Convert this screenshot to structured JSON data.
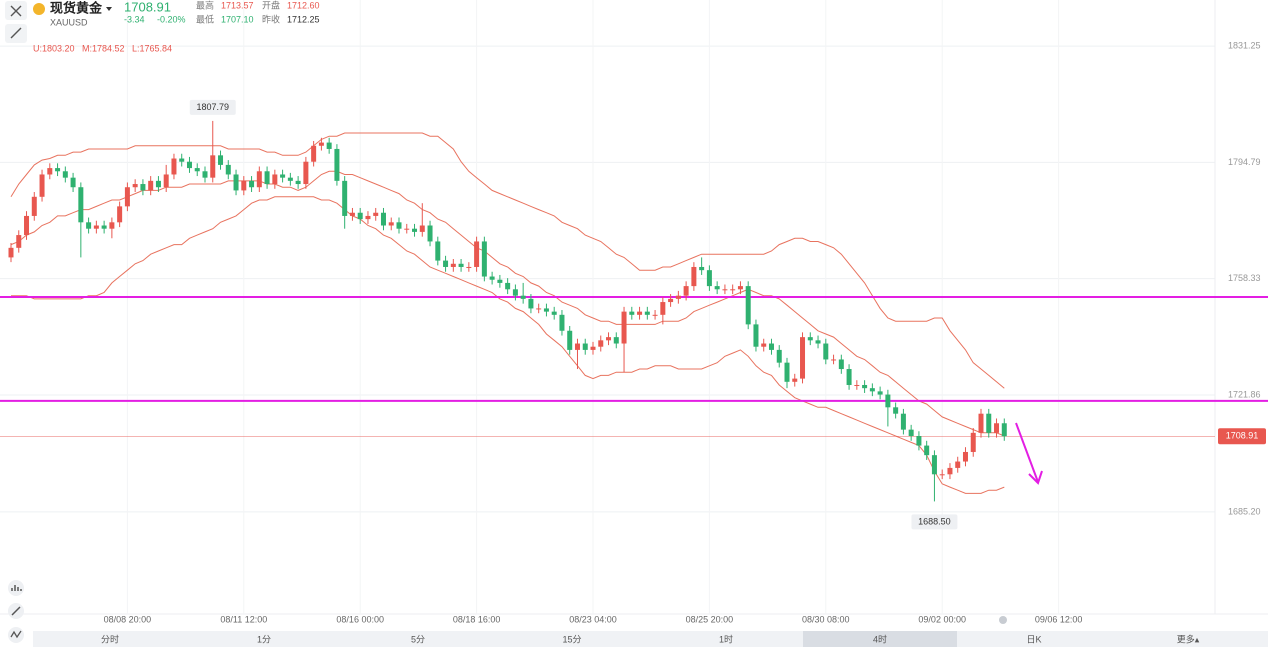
{
  "header": {
    "name": "现货黄金",
    "symbol": "XAUUSD",
    "price": "1708.91",
    "change": "-3.34",
    "change_pct": "-0.20%",
    "stats": [
      {
        "label": "最高",
        "value": "1713.57"
      },
      {
        "label": "开盘",
        "value": "1712.60"
      },
      {
        "label": "最低",
        "value": "1707.10"
      },
      {
        "label": "昨收",
        "value": "1712.25"
      }
    ],
    "indicator": [
      "U:1803.20",
      "M:1784.52",
      "L:1765.84"
    ]
  },
  "tabs": [
    "分时",
    "1分",
    "5分",
    "15分",
    "1时",
    "4时",
    "日K",
    "更多▴"
  ],
  "selected_tab": "4时",
  "chart_data": {
    "type": "candlestick",
    "ylim": [
      1653.2,
      1845.7
    ],
    "yticks": [
      {
        "value": 1831.25,
        "label": "1831.25"
      },
      1794.79,
      1758.33,
      1721.86,
      {
        "value": 1685.2,
        "label": "1685.20"
      }
    ],
    "grid": true,
    "up_color": "#e8574f",
    "down_color": "#2fb170",
    "last_price": 1708.91,
    "last_price_color": "#e8574f",
    "hlines": [
      {
        "value": 1752.6,
        "color": "#e31ee3"
      },
      {
        "value": 1720,
        "color": "#e31ee3"
      }
    ],
    "high_label": "1807.79",
    "low_label": "1688.50",
    "categories": [
      null,
      null,
      null,
      null,
      null,
      null,
      null,
      null,
      null,
      null,
      null,
      null,
      null,
      null,
      null,
      "08/08 20:00",
      null,
      null,
      null,
      null,
      null,
      null,
      null,
      null,
      null,
      null,
      null,
      null,
      null,
      null,
      "08/11 12:00",
      null,
      null,
      null,
      null,
      null,
      null,
      null,
      null,
      null,
      null,
      null,
      null,
      null,
      null,
      "08/16 00:00",
      null,
      null,
      null,
      null,
      null,
      null,
      null,
      null,
      null,
      null,
      null,
      null,
      null,
      null,
      "08/18 16:00",
      null,
      null,
      null,
      null,
      null,
      null,
      null,
      null,
      null,
      null,
      null,
      null,
      null,
      null,
      "08/23 04:00",
      null,
      null,
      null,
      null,
      null,
      null,
      null,
      null,
      null,
      null,
      null,
      null,
      null,
      null,
      "08/25 20:00",
      null,
      null,
      null,
      null,
      null,
      null,
      null,
      null,
      null,
      null,
      null,
      null,
      null,
      null,
      "08/30 08:00",
      null,
      null,
      null,
      null,
      null,
      null,
      null,
      null,
      null,
      null,
      null,
      null,
      null,
      null,
      "09/02 00:00",
      null,
      null,
      null,
      null,
      null,
      null,
      null,
      null,
      null,
      null,
      null,
      null,
      null,
      null,
      "09/06 12:00"
    ],
    "candles": [
      [
        1765,
        1769.5,
        1763.5,
        1768
      ],
      [
        1768,
        1773.5,
        1766.5,
        1772
      ],
      [
        1772,
        1779.5,
        1770.5,
        1778
      ],
      [
        1778,
        1785.5,
        1776.5,
        1784
      ],
      [
        1784,
        1792.5,
        1782.5,
        1791
      ],
      [
        1791,
        1794.5,
        1789.5,
        1793
      ],
      [
        1793,
        1794.5,
        1790.5,
        1792
      ],
      [
        1792,
        1793.5,
        1788.5,
        1790
      ],
      [
        1790,
        1791.5,
        1785.5,
        1787
      ],
      [
        1787,
        1788.5,
        1765,
        1776
      ],
      [
        1776,
        1777.5,
        1772.5,
        1774
      ],
      [
        1774,
        1776.5,
        1772.5,
        1775
      ],
      [
        1775,
        1776.5,
        1772.5,
        1774
      ],
      [
        1774,
        1777.5,
        1771,
        1776
      ],
      [
        1776,
        1782.5,
        1774.5,
        1781
      ],
      [
        1781,
        1788.5,
        1779.5,
        1787
      ],
      [
        1787,
        1789.5,
        1785.5,
        1788
      ],
      [
        1788,
        1789.5,
        1784.5,
        1786
      ],
      [
        1786,
        1790.5,
        1784.5,
        1789
      ],
      [
        1789,
        1790.5,
        1785.5,
        1787
      ],
      [
        1787,
        1794,
        1785.5,
        1791
      ],
      [
        1791,
        1797.5,
        1789.5,
        1796
      ],
      [
        1796,
        1797.5,
        1793.5,
        1795
      ],
      [
        1795,
        1796.5,
        1791.5,
        1793
      ],
      [
        1793,
        1794.5,
        1790.5,
        1792
      ],
      [
        1792,
        1793.5,
        1788.5,
        1790
      ],
      [
        1790,
        1807.79,
        1788.5,
        1797
      ],
      [
        1797,
        1798.5,
        1792.5,
        1794
      ],
      [
        1794,
        1795.5,
        1789.5,
        1791
      ],
      [
        1791,
        1792.5,
        1784.5,
        1786
      ],
      [
        1786,
        1790.5,
        1784.5,
        1789
      ],
      [
        1789,
        1790.5,
        1785.5,
        1787
      ],
      [
        1787,
        1793.5,
        1785.5,
        1792
      ],
      [
        1792,
        1793.5,
        1786.5,
        1788
      ],
      [
        1788,
        1792.5,
        1786.5,
        1791
      ],
      [
        1791,
        1792.5,
        1788.5,
        1790
      ],
      [
        1790,
        1791.5,
        1787.5,
        1789
      ],
      [
        1789,
        1790.5,
        1786.5,
        1788
      ],
      [
        1788,
        1796.5,
        1786.5,
        1795
      ],
      [
        1795,
        1801.5,
        1793.5,
        1800
      ],
      [
        1800,
        1802.5,
        1798.5,
        1801
      ],
      [
        1801,
        1802.5,
        1797.5,
        1799
      ],
      [
        1799,
        1800.5,
        1787.5,
        1789
      ],
      [
        1789,
        1790.5,
        1774,
        1778
      ],
      [
        1778,
        1780.5,
        1776.5,
        1779
      ],
      [
        1779,
        1780.5,
        1775.5,
        1777
      ],
      [
        1777,
        1779.5,
        1775.5,
        1778
      ],
      [
        1778,
        1780.5,
        1776.5,
        1779
      ],
      [
        1779,
        1780.5,
        1773.5,
        1775
      ],
      [
        1775,
        1777.5,
        1773.5,
        1776
      ],
      [
        1776,
        1777.5,
        1772.5,
        1774
      ],
      [
        1774,
        1775.5,
        1772.5,
        1774
      ],
      [
        1774,
        1775.5,
        1771.5,
        1773
      ],
      [
        1773,
        1782,
        1771.5,
        1775
      ],
      [
        1775,
        1776.5,
        1768.5,
        1770
      ],
      [
        1770,
        1771.5,
        1762.5,
        1764
      ],
      [
        1764,
        1765.5,
        1760.5,
        1762
      ],
      [
        1762,
        1764.5,
        1760.5,
        1763
      ],
      [
        1763,
        1764.5,
        1760.5,
        1762
      ],
      [
        1762,
        1763.5,
        1760.5,
        1762
      ],
      [
        1762,
        1771.5,
        1760.5,
        1770
      ],
      [
        1770,
        1771.5,
        1757.5,
        1759
      ],
      [
        1759,
        1760.5,
        1756.5,
        1758
      ],
      [
        1758,
        1759.5,
        1755.5,
        1757
      ],
      [
        1757,
        1758.5,
        1753.5,
        1755
      ],
      [
        1755,
        1756.5,
        1751.5,
        1753
      ],
      [
        1753,
        1757,
        1750.5,
        1752
      ],
      [
        1752,
        1753.5,
        1747.5,
        1749
      ],
      [
        1749,
        1750.5,
        1747.5,
        1749
      ],
      [
        1749,
        1750.5,
        1746.5,
        1748
      ],
      [
        1748,
        1749.5,
        1745.5,
        1747
      ],
      [
        1747,
        1748.5,
        1740.5,
        1742
      ],
      [
        1742,
        1743.5,
        1734.5,
        1736
      ],
      [
        1736,
        1739.5,
        1730,
        1738
      ],
      [
        1738,
        1739.5,
        1734.5,
        1736
      ],
      [
        1736,
        1738.5,
        1734.5,
        1737
      ],
      [
        1737,
        1740.5,
        1735.5,
        1739
      ],
      [
        1739,
        1741.5,
        1737.5,
        1740
      ],
      [
        1740,
        1741.5,
        1736.5,
        1738
      ],
      [
        1738,
        1749.5,
        1729,
        1748
      ],
      [
        1748,
        1749.5,
        1745.5,
        1747
      ],
      [
        1747,
        1749.5,
        1745.5,
        1748
      ],
      [
        1748,
        1749.5,
        1745.5,
        1747
      ],
      [
        1747,
        1748.5,
        1745.5,
        1747
      ],
      [
        1747,
        1752.5,
        1744,
        1751
      ],
      [
        1751,
        1753.5,
        1749.5,
        1752
      ],
      [
        1752,
        1754.5,
        1750.5,
        1753
      ],
      [
        1753,
        1757.5,
        1751.5,
        1756
      ],
      [
        1756,
        1763.5,
        1754.5,
        1762
      ],
      [
        1762,
        1765,
        1759.5,
        1761
      ],
      [
        1761,
        1762.5,
        1754.5,
        1756
      ],
      [
        1756,
        1757.5,
        1753.5,
        1755
      ],
      [
        1755,
        1756.5,
        1753.5,
        1755
      ],
      [
        1755,
        1756.5,
        1753.5,
        1755
      ],
      [
        1755,
        1757.5,
        1753.5,
        1756
      ],
      [
        1756,
        1757.5,
        1742.5,
        1744
      ],
      [
        1744,
        1745.5,
        1735.5,
        1737
      ],
      [
        1737,
        1739.5,
        1735.5,
        1738
      ],
      [
        1738,
        1739.5,
        1734.5,
        1736
      ],
      [
        1736,
        1737.5,
        1730.5,
        1732
      ],
      [
        1732,
        1733.5,
        1724,
        1726
      ],
      [
        1726,
        1728.5,
        1724.5,
        1727
      ],
      [
        1727,
        1741.5,
        1725.5,
        1740
      ],
      [
        1740,
        1741.5,
        1737.5,
        1739
      ],
      [
        1739,
        1740.5,
        1736.5,
        1738
      ],
      [
        1738,
        1739.5,
        1731.5,
        1733
      ],
      [
        1733,
        1734.5,
        1731.5,
        1733
      ],
      [
        1733,
        1734.5,
        1728.5,
        1730
      ],
      [
        1730,
        1731.5,
        1723.5,
        1725
      ],
      [
        1725,
        1726.5,
        1723.5,
        1725
      ],
      [
        1725,
        1726.5,
        1722.5,
        1724
      ],
      [
        1724,
        1725.5,
        1721.5,
        1723
      ],
      [
        1723,
        1724.5,
        1720.5,
        1722
      ],
      [
        1722,
        1723.5,
        1712,
        1718
      ],
      [
        1718,
        1719.5,
        1714.5,
        1716
      ],
      [
        1716,
        1717.5,
        1709.5,
        1711
      ],
      [
        1711,
        1712.5,
        1707.5,
        1709
      ],
      [
        1709,
        1710.5,
        1704.5,
        1706
      ],
      [
        1706,
        1707.5,
        1701.5,
        1703
      ],
      [
        1703,
        1704.5,
        1688.5,
        1697
      ],
      [
        1697,
        1698.5,
        1695.5,
        1697
      ],
      [
        1697,
        1700.5,
        1695.5,
        1699
      ],
      [
        1699,
        1702.5,
        1697.5,
        1701
      ],
      [
        1701,
        1705.5,
        1699.5,
        1704
      ],
      [
        1704,
        1711.5,
        1702.5,
        1710
      ],
      [
        1710,
        1717.5,
        1708.5,
        1716
      ],
      [
        1716,
        1717.5,
        1708.5,
        1710
      ],
      [
        1710,
        1714.5,
        1708.5,
        1713
      ],
      [
        1713,
        1714.5,
        1707.5,
        1708.91
      ],
      null,
      null,
      null,
      null,
      null,
      null,
      null
    ],
    "bands": [
      {
        "color": "#e8735f",
        "values": [
          1784,
          1788,
          1791,
          1794,
          1795.5,
          1796,
          1797,
          1797,
          1798,
          1798,
          1799,
          1799,
          1799,
          1799,
          1799,
          1799,
          1800,
          1800,
          1800,
          1800,
          1800,
          1800,
          1800,
          1800,
          1800,
          1800,
          1800,
          1800,
          1799,
          1799,
          1799,
          1799,
          1799,
          1798,
          1798,
          1797,
          1797,
          1797,
          1798,
          1800,
          1802,
          1803,
          1803,
          1804,
          1804,
          1804,
          1804,
          1804,
          1804,
          1804,
          1804,
          1804,
          1804,
          1804,
          1803,
          1803,
          1801,
          1799,
          1795,
          1792,
          1790,
          1788,
          1786,
          1785,
          1784,
          1783,
          1782,
          1781,
          1780,
          1779,
          1778,
          1776,
          1775,
          1774,
          1772,
          1771,
          1770,
          1768,
          1766,
          1765,
          1763,
          1761,
          1761,
          1761,
          1762,
          1762,
          1763,
          1764,
          1765,
          1766,
          1766,
          1766,
          1766,
          1766,
          1766,
          1766,
          1766,
          1766,
          1767,
          1769,
          1770,
          1771,
          1771,
          1770,
          1770,
          1769,
          1768,
          1766,
          1763,
          1760,
          1757,
          1753,
          1749,
          1746,
          1745,
          1745,
          1745,
          1745,
          1745,
          1746,
          1746,
          1742,
          1739,
          1736,
          1732,
          1730,
          1728,
          1726,
          1724,
          null,
          null,
          null,
          null,
          null,
          null,
          null
        ]
      },
      {
        "color": "#e8735f",
        "values": [
          1769,
          1770,
          1772,
          1773,
          1775,
          1776,
          1778,
          1778,
          1779,
          1780,
          1780,
          1781,
          1782,
          1783,
          1783,
          1784,
          1785,
          1786,
          1786,
          1786,
          1787,
          1787,
          1787,
          1788,
          1788,
          1788,
          1788,
          1788,
          1789,
          1789,
          1789,
          1789,
          1789,
          1788,
          1788,
          1787,
          1787,
          1786,
          1787,
          1789,
          1791,
          1792,
          1792,
          1791,
          1791,
          1790,
          1789,
          1788,
          1787,
          1786,
          1785,
          1783,
          1782,
          1780,
          1779,
          1777,
          1776,
          1774,
          1772,
          1770,
          1768,
          1767,
          1765,
          1763,
          1762,
          1760,
          1759,
          1757,
          1756,
          1754,
          1753,
          1751,
          1750,
          1749,
          1747,
          1746,
          1745,
          1745,
          1744,
          1744,
          1744,
          1744,
          1744,
          1744,
          1745,
          1745,
          1745,
          1746,
          1748,
          1749,
          1750,
          1751,
          1752,
          1753,
          1754,
          1755,
          1754,
          1753,
          1753,
          1752,
          1750,
          1748,
          1746,
          1744,
          1742,
          1741,
          1740,
          1738,
          1736,
          1734,
          1733,
          1731,
          1729,
          1728,
          1726,
          1724,
          1722,
          1720,
          1719,
          1717,
          1715,
          1714,
          1713,
          1712,
          1711,
          1710,
          1710,
          1710,
          1709,
          null,
          null,
          null,
          null,
          null,
          null,
          null
        ]
      },
      {
        "color": "#e8735f",
        "values": [
          1753,
          1753,
          1753,
          1752,
          1752,
          1752,
          1752,
          1752,
          1752,
          1752,
          1753,
          1753,
          1754,
          1757,
          1759,
          1761,
          1763,
          1764,
          1766,
          1767,
          1768,
          1769,
          1769,
          1771,
          1772,
          1773,
          1774,
          1776,
          1777,
          1778,
          1780,
          1782,
          1783,
          1783,
          1784,
          1784,
          1784,
          1784,
          1784,
          1784,
          1783,
          1783,
          1782,
          1780,
          1778,
          1777,
          1775,
          1774,
          1772,
          1771,
          1769,
          1767,
          1766,
          1764,
          1762,
          1761,
          1760,
          1759,
          1758,
          1757,
          1756,
          1755,
          1754,
          1752,
          1751,
          1749,
          1748,
          1746,
          1744,
          1741,
          1739,
          1737,
          1734,
          1731,
          1728,
          1727,
          1728,
          1728,
          1729,
          1729,
          1729,
          1730,
          1730,
          1731,
          1731,
          1731,
          1730,
          1730,
          1730,
          1730,
          1731,
          1732,
          1734,
          1735,
          1736,
          1734,
          1731,
          1729,
          1728,
          1725,
          1723,
          1721,
          1720,
          1719,
          1718,
          1718,
          1717,
          1716,
          1715,
          1714,
          1713,
          1712,
          1711,
          1710,
          1709,
          1708,
          1707,
          1706,
          1703,
          1698,
          1694,
          1693,
          1692,
          1691,
          1691,
          1691,
          1692,
          1692,
          1693,
          null,
          null,
          null,
          null,
          null,
          null,
          null
        ]
      }
    ]
  }
}
